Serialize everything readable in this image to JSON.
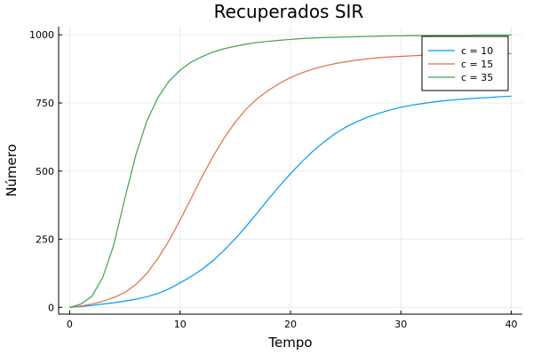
{
  "chart_data": {
    "type": "line",
    "title": "Recuperados SIR",
    "xlabel": "Tempo",
    "ylabel": "Número",
    "xlim": [
      -1,
      41
    ],
    "ylim": [
      -25,
      1030
    ],
    "xticks": [
      0,
      10,
      20,
      30,
      40
    ],
    "yticks": [
      0,
      250,
      500,
      750,
      1000
    ],
    "grid": true,
    "legend_position": "top-right",
    "x": [
      0,
      1,
      2,
      3,
      4,
      5,
      6,
      7,
      8,
      9,
      10,
      11,
      12,
      13,
      14,
      15,
      16,
      17,
      18,
      19,
      20,
      21,
      22,
      23,
      24,
      25,
      26,
      27,
      28,
      29,
      30,
      31,
      32,
      33,
      34,
      35,
      36,
      37,
      38,
      39,
      40
    ],
    "series": [
      {
        "name": "c = 10",
        "color": "#009af9",
        "values": [
          0,
          3,
          7,
          12,
          17,
          23,
          30,
          39,
          51,
          68,
          90,
          113,
          140,
          172,
          210,
          252,
          298,
          347,
          397,
          445,
          490,
          533,
          572,
          606,
          636,
          661,
          681,
          698,
          712,
          724,
          734,
          742,
          748,
          754,
          758,
          762,
          765,
          768,
          770,
          773,
          775
        ]
      },
      {
        "name": "c = 15",
        "color": "#e26f46",
        "values": [
          0,
          5,
          12,
          22,
          36,
          55,
          84,
          125,
          180,
          245,
          320,
          400,
          480,
          555,
          622,
          680,
          728,
          766,
          796,
          822,
          843,
          860,
          874,
          885,
          894,
          901,
          907,
          912,
          916,
          919,
          921,
          923,
          925,
          926,
          927,
          928,
          929,
          930,
          930,
          931,
          931
        ]
      },
      {
        "name": "c = 35",
        "color": "#3da44d",
        "values": [
          0,
          12,
          40,
          110,
          230,
          400,
          560,
          685,
          770,
          830,
          870,
          900,
          920,
          937,
          949,
          958,
          966,
          972,
          976,
          980,
          983,
          986,
          988,
          990,
          991,
          992,
          993,
          994,
          995,
          996,
          996,
          997,
          997,
          998,
          998,
          998,
          998,
          999,
          999,
          999,
          999
        ]
      }
    ]
  }
}
